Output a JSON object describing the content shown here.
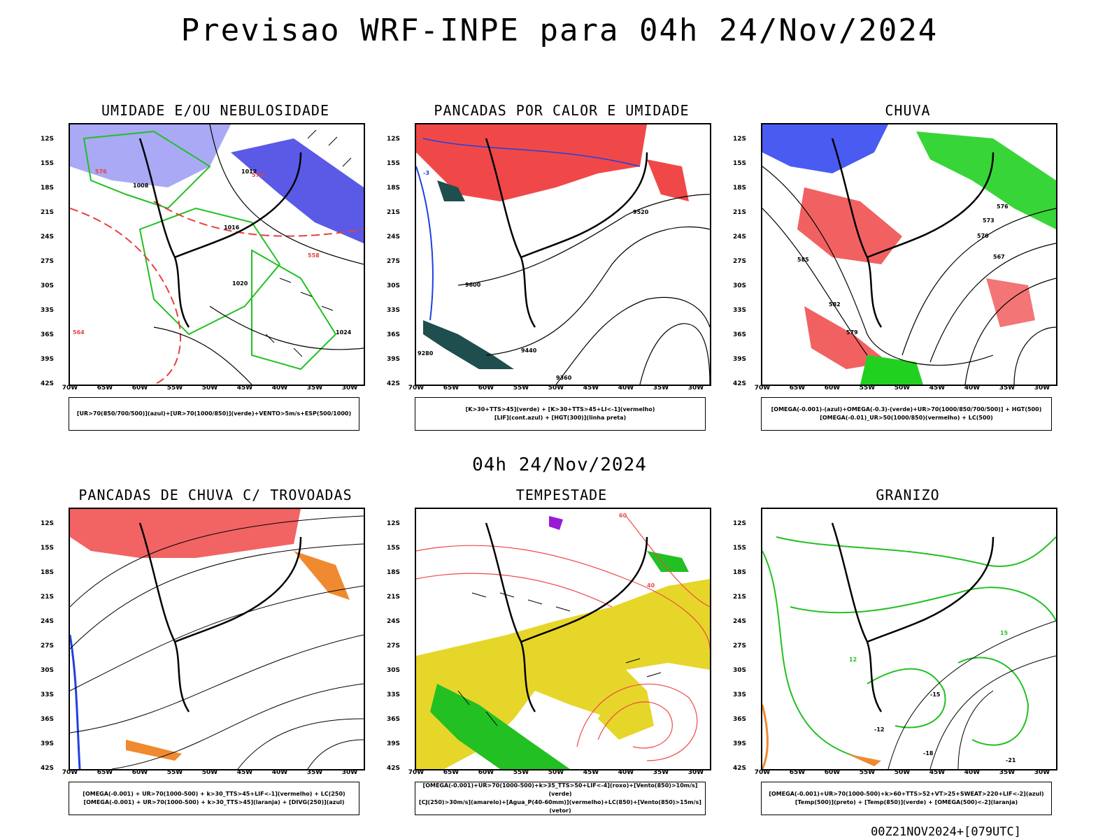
{
  "title": "Previsao WRF-INPE  para 04h 24/Nov/2024",
  "subtitle": "04h 24/Nov/2024",
  "footer": "00Z21NOV2024+[079UTC]",
  "lat_labels": [
    "12S",
    "15S",
    "18S",
    "21S",
    "24S",
    "27S",
    "30S",
    "33S",
    "36S",
    "39S",
    "42S"
  ],
  "lon_labels": [
    "70W",
    "65W",
    "60W",
    "55W",
    "50W",
    "45W",
    "40W",
    "35W",
    "30W"
  ],
  "panels": [
    {
      "title": "UMIDADE E/OU NEBULOSIDADE",
      "legend": [
        "[UR>70(850/700/500)](azul)+[UR>70(1000/850)](verde)+VENTO>5m/s+ESP(500/1000)"
      ],
      "contour_labels": [
        "1012",
        "1016",
        "1020",
        "1024",
        "1008",
        "576",
        "570",
        "564",
        "558"
      ]
    },
    {
      "title": "PANCADAS POR CALOR E UMIDADE",
      "legend": [
        "[K>30+TTS>45](verde)  +  [K>30+TTS>45+LI<-1](vermelho)",
        "[LIF](cont.azul)  +  [HGT(300)](linha preta)"
      ],
      "contour_labels": [
        "9600",
        "9520",
        "9440",
        "9360",
        "9280",
        "-3"
      ]
    },
    {
      "title": "CHUVA",
      "legend": [
        "[OMEGA(-0.001)-(azul)+OMEGA(-0.3)-(verde)+UR>70(1000/850/700/500)]  +  HGT(500)",
        "[OMEGA(-0.01)_UR>50(1000/850)(vermelho)  +  LC(500)"
      ],
      "contour_labels": [
        "576",
        "573",
        "570",
        "567",
        "585",
        "582",
        "579"
      ]
    },
    {
      "title": "PANCADAS DE CHUVA C/ TROVOADAS",
      "legend": [
        "[OMEGA(-0.001)  +  UR>70(1000-500)  +  k>30_TTS>45+LIF<-1](vermelho)  +  LC(250)",
        "[OMEGA(-0.001)  +  UR>70(1000-500)  +  k>30_TTS>45](laranja)  +  [DIVG(250)](azul)"
      ],
      "contour_labels": []
    },
    {
      "title": "TEMPESTADE",
      "legend": [
        "[OMEGA(-0.001)+UR>70(1000-500)+k>35_TTS>50+LIF<-4](roxo)+[Vento(850)>10m/s](verde)",
        "[CJ(250)>30m/s](amarelo)+[Agua_P(40-60mm)](vermelho)+LC(850)+[Vento(850)>15m/s](vetor)"
      ],
      "contour_labels": [
        "40",
        "60"
      ]
    },
    {
      "title": "GRANIZO",
      "legend": [
        "[OMEGA(-0.001)+UR>70(1000-500)+k>60+TTS>52+VT>25+SWEAT>220+LIF<-2](azul)",
        "[Temp(500)](preto)  +  [Temp(850)](verde)  +  [OMEGA(500)<-2](laranja)"
      ],
      "contour_labels": [
        "-12",
        "-15",
        "-18",
        "-21",
        "12",
        "15"
      ]
    }
  ]
}
